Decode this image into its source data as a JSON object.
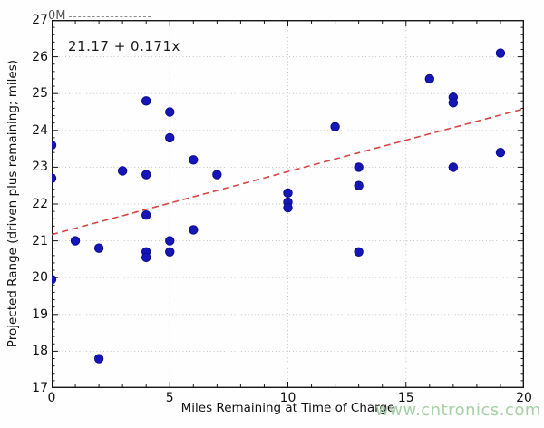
{
  "watermark": {
    "text": "www.cntronics.com",
    "color": "#a6cfa6"
  },
  "artifact": {
    "text": "0M"
  },
  "chart_data": {
    "type": "scatter",
    "title": "",
    "xlabel": "Miles Remaining at Time of Charge",
    "ylabel": "Projected Range (driven plus remaining; miles)",
    "annotation": "21.17 + 0.171x",
    "xlim": [
      0,
      20
    ],
    "ylim": [
      17,
      27
    ],
    "xticks": [
      0,
      5,
      10,
      15,
      20
    ],
    "yticks": [
      17,
      18,
      19,
      20,
      21,
      22,
      23,
      24,
      25,
      26,
      27
    ],
    "x_minor_step": 1,
    "y_minor_step": 0.2,
    "grid": true,
    "grid_color": "#bcbcbc",
    "axis_color": "#161616",
    "point_color": "#1616b8",
    "point_edge_color": "#0a0a8c",
    "trend_color": "#d94545",
    "points": [
      [
        0,
        23.6
      ],
      [
        0,
        22.7
      ],
      [
        0,
        19.95
      ],
      [
        1,
        21.0
      ],
      [
        2,
        20.8
      ],
      [
        2,
        17.8
      ],
      [
        3,
        22.9
      ],
      [
        4,
        24.8
      ],
      [
        4,
        22.8
      ],
      [
        4,
        21.7
      ],
      [
        4,
        20.7
      ],
      [
        4,
        20.55
      ],
      [
        5,
        24.5
      ],
      [
        5,
        23.8
      ],
      [
        5,
        21.0
      ],
      [
        5,
        20.7
      ],
      [
        6,
        23.2
      ],
      [
        6,
        21.3
      ],
      [
        7,
        22.8
      ],
      [
        10,
        22.3
      ],
      [
        10,
        22.05
      ],
      [
        10,
        21.9
      ],
      [
        12,
        24.1
      ],
      [
        13,
        23.0
      ],
      [
        13,
        22.5
      ],
      [
        13,
        20.7
      ],
      [
        16,
        25.4
      ],
      [
        17,
        24.9
      ],
      [
        17,
        24.75
      ],
      [
        17,
        23.0
      ],
      [
        19,
        26.1
      ],
      [
        19,
        23.4
      ]
    ],
    "trendline": {
      "intercept": 21.17,
      "slope": 0.171,
      "x_start": 0,
      "x_end": 20,
      "style": "dashed"
    },
    "legend": null
  }
}
